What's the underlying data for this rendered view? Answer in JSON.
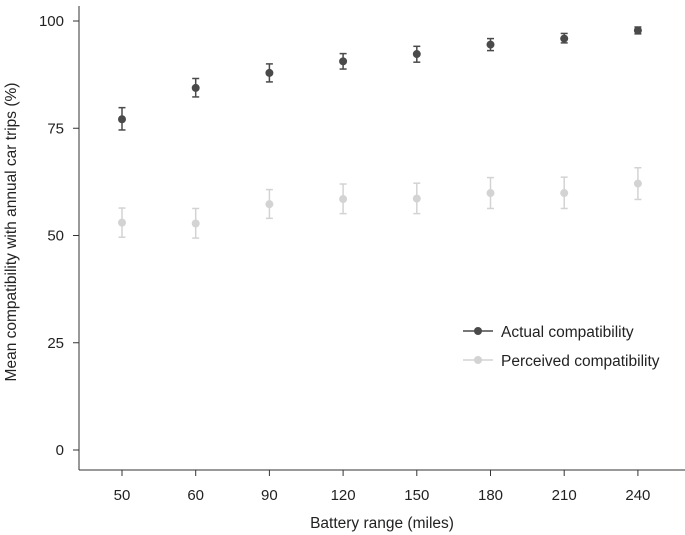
{
  "chart_data": {
    "type": "scatter",
    "xlabel": "Battery range (miles)",
    "ylabel": "Mean compatibility with annual car trips (%)",
    "categories": [
      "50",
      "60",
      "90",
      "120",
      "150",
      "180",
      "210",
      "240"
    ],
    "y_ticks": [
      "0",
      "25",
      "50",
      "75",
      "100"
    ],
    "ylim": [
      0,
      100
    ],
    "grid": false,
    "legend_position": "right",
    "series": [
      {
        "name": "Actual compatibility",
        "color": "#4a4a4a",
        "values": [
          77.1,
          84.4,
          87.9,
          90.6,
          92.3,
          94.5,
          95.9,
          97.8
        ],
        "error_low": [
          74.6,
          82.3,
          85.8,
          88.8,
          90.4,
          93.1,
          94.9,
          97.0
        ],
        "error_high": [
          79.8,
          86.6,
          90.0,
          92.4,
          94.1,
          95.9,
          97.1,
          98.6
        ]
      },
      {
        "name": "Perceived compatibility",
        "color": "#d3d3d3",
        "values": [
          53.0,
          52.8,
          57.3,
          58.5,
          58.6,
          59.9,
          59.9,
          62.1
        ],
        "error_low": [
          49.6,
          49.4,
          54.0,
          55.1,
          55.1,
          56.3,
          56.3,
          58.4
        ],
        "error_high": [
          56.4,
          56.3,
          60.7,
          62.0,
          62.2,
          63.5,
          63.6,
          65.8
        ]
      }
    ]
  }
}
